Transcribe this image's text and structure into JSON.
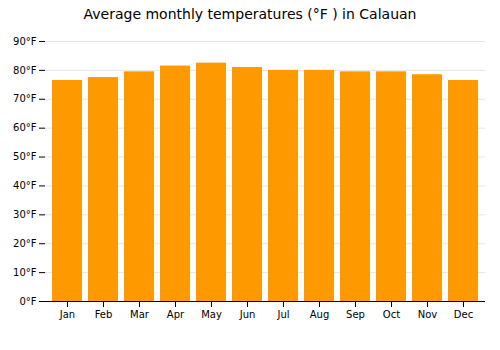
{
  "chart_data": {
    "type": "bar",
    "title": "Average monthly temperatures (°F ) in Calauan",
    "categories": [
      "Jan",
      "Feb",
      "Mar",
      "Apr",
      "May",
      "Jun",
      "Jul",
      "Aug",
      "Sep",
      "Oct",
      "Nov",
      "Dec"
    ],
    "values": [
      76.5,
      77.5,
      79.5,
      81.5,
      82.5,
      81.0,
      80.0,
      80.0,
      79.5,
      79.5,
      78.5,
      76.5
    ],
    "color": "#FF9900",
    "ylim": [
      0,
      90
    ],
    "yticks": [
      {
        "value": 0,
        "label": "0°F"
      },
      {
        "value": 10,
        "label": "10°F"
      },
      {
        "value": 20,
        "label": "20°F"
      },
      {
        "value": 30,
        "label": "30°F"
      },
      {
        "value": 40,
        "label": "40°F"
      },
      {
        "value": 50,
        "label": "50°F"
      },
      {
        "value": 60,
        "label": "60°F"
      },
      {
        "value": 70,
        "label": "70°F"
      },
      {
        "value": 80,
        "label": "80°F"
      },
      {
        "value": 90,
        "label": "90°F"
      }
    ],
    "grid": true
  }
}
